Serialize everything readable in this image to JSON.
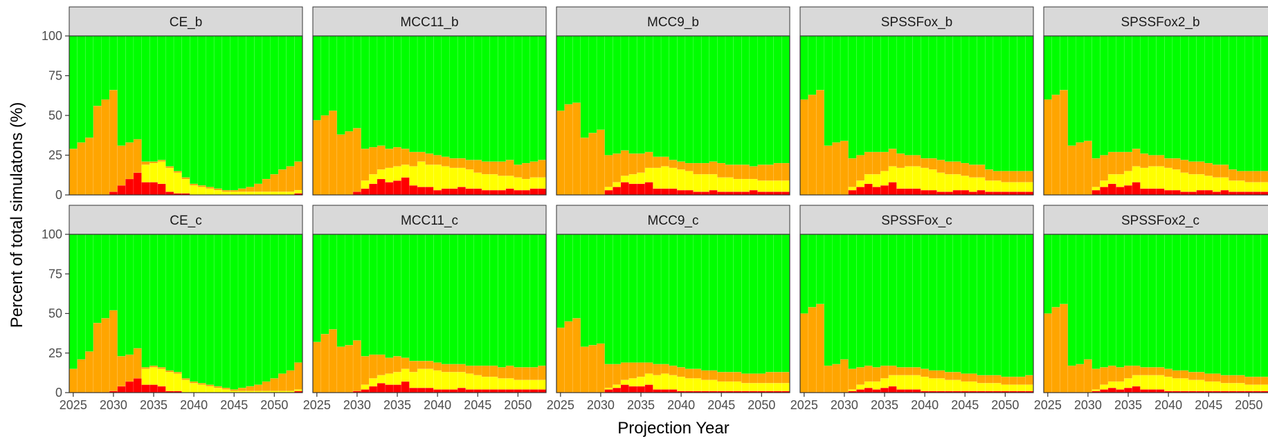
{
  "chart_data": {
    "type": "bar",
    "stacked": true,
    "ylabel": "Percent of total simulatons (%)",
    "xlabel": "Projection Year",
    "ylim": [
      0,
      100
    ],
    "yticks": [
      0,
      25,
      50,
      75,
      100
    ],
    "xticks": [
      2025,
      2030,
      2035,
      2040,
      2045,
      2050
    ],
    "x": [
      2025,
      2026,
      2027,
      2028,
      2029,
      2030,
      2031,
      2032,
      2033,
      2034,
      2035,
      2036,
      2037,
      2038,
      2039,
      2040,
      2041,
      2042,
      2043,
      2044,
      2045,
      2046,
      2047,
      2048,
      2049,
      2050,
      2051,
      2052,
      2053
    ],
    "colors": {
      "red": "#ff0000",
      "yellow": "#ffff00",
      "orange": "#ffa500",
      "green": "#00ff00"
    },
    "series_order": [
      "red",
      "yellow",
      "orange",
      "green"
    ],
    "panels": [
      {
        "label": "CE_b",
        "red": [
          0,
          0,
          0,
          0,
          0,
          2,
          6,
          10,
          14,
          8,
          8,
          7,
          2,
          1,
          1,
          0,
          0,
          0,
          0,
          0,
          0,
          0,
          0,
          0,
          0,
          0,
          0,
          0,
          1
        ],
        "yellow": [
          0,
          0,
          0,
          0,
          0,
          0,
          0,
          0,
          0,
          11,
          12,
          14,
          15,
          13,
          9,
          6,
          5,
          4,
          3,
          2,
          2,
          2,
          2,
          2,
          2,
          2,
          2,
          2,
          2
        ],
        "orange": [
          29,
          33,
          36,
          56,
          60,
          64,
          25,
          23,
          21,
          2,
          1,
          1,
          1,
          1,
          1,
          1,
          1,
          1,
          1,
          1,
          1,
          2,
          3,
          5,
          8,
          11,
          14,
          16,
          18
        ]
      },
      {
        "label": "MCC11_b",
        "red": [
          0,
          0,
          0,
          0,
          0,
          2,
          4,
          7,
          10,
          8,
          9,
          11,
          6,
          5,
          5,
          3,
          4,
          4,
          5,
          4,
          4,
          3,
          3,
          3,
          4,
          3,
          3,
          4,
          4
        ],
        "yellow": [
          0,
          0,
          0,
          0,
          0,
          0,
          5,
          6,
          6,
          9,
          9,
          8,
          12,
          16,
          14,
          16,
          14,
          13,
          12,
          12,
          10,
          10,
          10,
          9,
          8,
          8,
          7,
          7,
          7
        ],
        "orange": [
          47,
          50,
          53,
          38,
          40,
          40,
          20,
          17,
          15,
          12,
          12,
          10,
          9,
          6,
          7,
          6,
          6,
          6,
          6,
          6,
          8,
          8,
          8,
          9,
          10,
          8,
          10,
          10,
          11
        ]
      },
      {
        "label": "MCC9_b",
        "red": [
          0,
          0,
          0,
          0,
          0,
          0,
          3,
          5,
          8,
          7,
          7,
          8,
          4,
          4,
          4,
          3,
          3,
          2,
          2,
          3,
          2,
          2,
          2,
          2,
          3,
          2,
          2,
          2,
          2
        ],
        "yellow": [
          0,
          0,
          0,
          0,
          0,
          0,
          2,
          3,
          4,
          6,
          7,
          9,
          13,
          14,
          13,
          13,
          12,
          11,
          11,
          10,
          9,
          9,
          8,
          8,
          7,
          7,
          7,
          7,
          7
        ],
        "orange": [
          53,
          57,
          58,
          36,
          39,
          41,
          20,
          18,
          16,
          13,
          12,
          10,
          7,
          6,
          5,
          5,
          5,
          7,
          7,
          8,
          9,
          8,
          9,
          9,
          8,
          10,
          10,
          11,
          11
        ]
      },
      {
        "label": "SPSSFox_b",
        "red": [
          0,
          0,
          0,
          0,
          0,
          0,
          3,
          5,
          7,
          5,
          6,
          8,
          4,
          4,
          4,
          3,
          3,
          2,
          2,
          3,
          3,
          2,
          3,
          2,
          2,
          2,
          2,
          2,
          2
        ],
        "yellow": [
          0,
          0,
          0,
          0,
          0,
          0,
          2,
          4,
          6,
          8,
          9,
          10,
          13,
          14,
          14,
          14,
          13,
          12,
          11,
          10,
          9,
          9,
          8,
          7,
          7,
          6,
          6,
          6,
          6
        ],
        "orange": [
          60,
          63,
          66,
          31,
          33,
          34,
          18,
          16,
          14,
          14,
          12,
          11,
          9,
          7,
          7,
          6,
          7,
          8,
          8,
          8,
          8,
          8,
          8,
          7,
          6,
          7,
          7,
          7,
          7
        ]
      },
      {
        "label": "SPSSFox2_b",
        "red": [
          0,
          0,
          0,
          0,
          0,
          0,
          3,
          5,
          7,
          5,
          6,
          8,
          4,
          4,
          4,
          3,
          3,
          2,
          2,
          3,
          3,
          2,
          3,
          2,
          2,
          2,
          2,
          2,
          2
        ],
        "yellow": [
          0,
          0,
          0,
          0,
          0,
          0,
          2,
          4,
          6,
          8,
          9,
          10,
          13,
          14,
          14,
          14,
          13,
          12,
          11,
          10,
          9,
          9,
          8,
          7,
          7,
          6,
          6,
          6,
          6
        ],
        "orange": [
          60,
          63,
          66,
          31,
          33,
          34,
          18,
          16,
          14,
          14,
          12,
          11,
          9,
          7,
          7,
          6,
          7,
          8,
          8,
          8,
          8,
          8,
          8,
          7,
          6,
          7,
          7,
          7,
          7
        ]
      },
      {
        "label": "CE_c",
        "red": [
          0,
          0,
          0,
          0,
          0,
          1,
          4,
          7,
          9,
          5,
          5,
          4,
          1,
          1,
          0,
          0,
          0,
          0,
          0,
          0,
          0,
          0,
          0,
          0,
          0,
          0,
          0,
          0,
          1
        ],
        "yellow": [
          0,
          0,
          0,
          0,
          0,
          0,
          0,
          0,
          0,
          10,
          11,
          11,
          12,
          11,
          8,
          6,
          5,
          4,
          3,
          2,
          1,
          1,
          1,
          1,
          1,
          1,
          1,
          1,
          1
        ],
        "orange": [
          15,
          21,
          26,
          44,
          47,
          51,
          19,
          17,
          19,
          1,
          1,
          1,
          1,
          1,
          1,
          1,
          1,
          1,
          1,
          1,
          1,
          2,
          3,
          4,
          6,
          8,
          11,
          13,
          17
        ]
      },
      {
        "label": "MCC11_c",
        "red": [
          0,
          0,
          0,
          0,
          0,
          1,
          2,
          4,
          6,
          5,
          5,
          7,
          3,
          3,
          3,
          2,
          2,
          2,
          3,
          2,
          2,
          2,
          2,
          2,
          2,
          2,
          2,
          2,
          2
        ],
        "yellow": [
          0,
          0,
          0,
          0,
          0,
          0,
          3,
          5,
          5,
          7,
          8,
          8,
          10,
          12,
          12,
          12,
          11,
          11,
          10,
          10,
          9,
          8,
          8,
          7,
          7,
          6,
          6,
          6,
          6
        ],
        "orange": [
          32,
          37,
          40,
          29,
          30,
          32,
          18,
          15,
          13,
          10,
          10,
          7,
          7,
          5,
          5,
          5,
          5,
          5,
          5,
          5,
          6,
          7,
          7,
          7,
          8,
          8,
          8,
          8,
          9
        ]
      },
      {
        "label": "MCC9_c",
        "red": [
          0,
          0,
          0,
          0,
          0,
          0,
          2,
          3,
          5,
          4,
          4,
          5,
          2,
          2,
          2,
          1,
          1,
          1,
          1,
          1,
          1,
          1,
          1,
          1,
          1,
          1,
          1,
          1,
          1
        ],
        "yellow": [
          0,
          0,
          0,
          0,
          0,
          0,
          1,
          2,
          3,
          5,
          6,
          7,
          9,
          10,
          9,
          9,
          8,
          8,
          7,
          7,
          6,
          6,
          6,
          5,
          5,
          5,
          5,
          5,
          5
        ],
        "orange": [
          41,
          45,
          47,
          29,
          30,
          31,
          15,
          13,
          11,
          10,
          9,
          7,
          7,
          6,
          6,
          6,
          6,
          6,
          6,
          6,
          6,
          6,
          6,
          6,
          6,
          6,
          7,
          7,
          7
        ]
      },
      {
        "label": "SPSSFox_c",
        "red": [
          0,
          0,
          0,
          0,
          0,
          0,
          1,
          2,
          3,
          2,
          3,
          4,
          2,
          2,
          2,
          1,
          1,
          1,
          1,
          1,
          1,
          1,
          1,
          1,
          1,
          1,
          1,
          1,
          1
        ],
        "yellow": [
          0,
          0,
          0,
          0,
          0,
          0,
          1,
          3,
          4,
          5,
          6,
          7,
          9,
          9,
          9,
          9,
          8,
          8,
          7,
          7,
          6,
          6,
          5,
          5,
          5,
          4,
          4,
          4,
          4
        ],
        "orange": [
          50,
          54,
          56,
          17,
          18,
          21,
          13,
          11,
          10,
          9,
          8,
          6,
          5,
          5,
          5,
          5,
          5,
          5,
          5,
          5,
          5,
          5,
          5,
          5,
          5,
          5,
          5,
          5,
          6
        ]
      },
      {
        "label": "SPSSFox2_c",
        "red": [
          0,
          0,
          0,
          0,
          0,
          0,
          1,
          2,
          3,
          2,
          3,
          4,
          2,
          2,
          2,
          1,
          1,
          1,
          1,
          1,
          1,
          1,
          1,
          1,
          1,
          1,
          1,
          1,
          1
        ],
        "yellow": [
          0,
          0,
          0,
          0,
          0,
          0,
          1,
          3,
          4,
          5,
          6,
          7,
          9,
          9,
          9,
          9,
          8,
          8,
          7,
          7,
          6,
          6,
          5,
          5,
          5,
          4,
          4,
          4,
          4
        ],
        "orange": [
          50,
          54,
          56,
          17,
          18,
          21,
          13,
          11,
          10,
          9,
          8,
          6,
          5,
          5,
          5,
          5,
          5,
          5,
          5,
          5,
          5,
          5,
          5,
          5,
          5,
          5,
          5,
          5,
          6
        ]
      }
    ]
  }
}
